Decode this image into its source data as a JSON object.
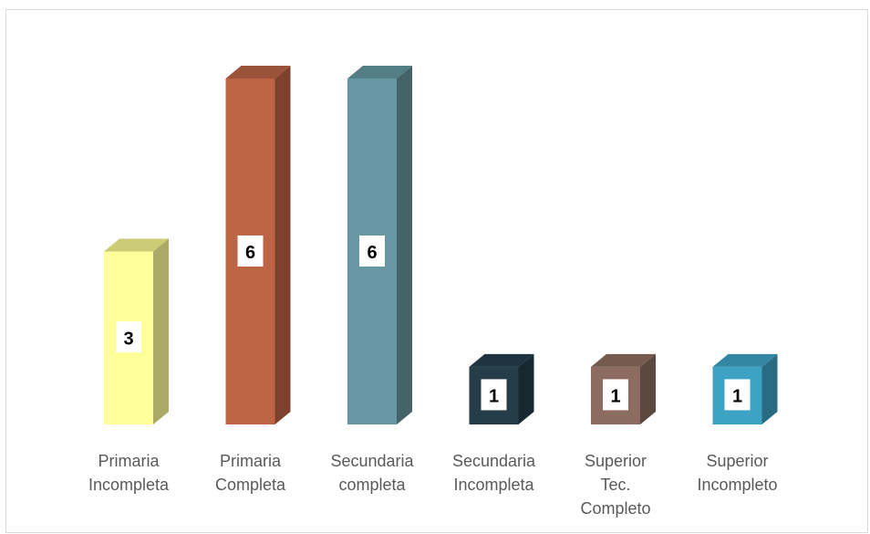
{
  "chart_data": {
    "type": "bar",
    "title": "",
    "xlabel": "",
    "ylabel": "",
    "ylim": [
      0,
      6
    ],
    "grid": false,
    "legend": "none",
    "categories": [
      "Primaria Incompleta",
      "Primaria Completa",
      "Secundaria completa",
      "Secundaria Incompleta",
      "Superior Tec. Completo",
      "Superior Incompleto"
    ],
    "category_lines": [
      [
        "Primaria",
        "Incompleta"
      ],
      [
        "Primaria",
        "Completa"
      ],
      [
        "Secundaria",
        "completa"
      ],
      [
        "Secundaria",
        "Incompleta"
      ],
      [
        "Superior",
        "Tec.",
        "Completo"
      ],
      [
        "Superior",
        "Incompleto"
      ]
    ],
    "values": [
      3,
      6,
      6,
      1,
      1,
      1
    ],
    "colors": [
      {
        "front": "#FFFF99",
        "side": "#AAAA66",
        "top": "#CCCC77"
      },
      {
        "front": "#BC6444",
        "side": "#7D422D",
        "top": "#9A5238"
      },
      {
        "front": "#6697A2",
        "side": "#446469",
        "top": "#547E86"
      },
      {
        "front": "#243D48",
        "side": "#172830",
        "top": "#1E3440"
      },
      {
        "front": "#8C6C61",
        "side": "#5D4840",
        "top": "#755A50"
      },
      {
        "front": "#3DA2C3",
        "side": "#296C82",
        "top": "#3487A3"
      }
    ]
  }
}
